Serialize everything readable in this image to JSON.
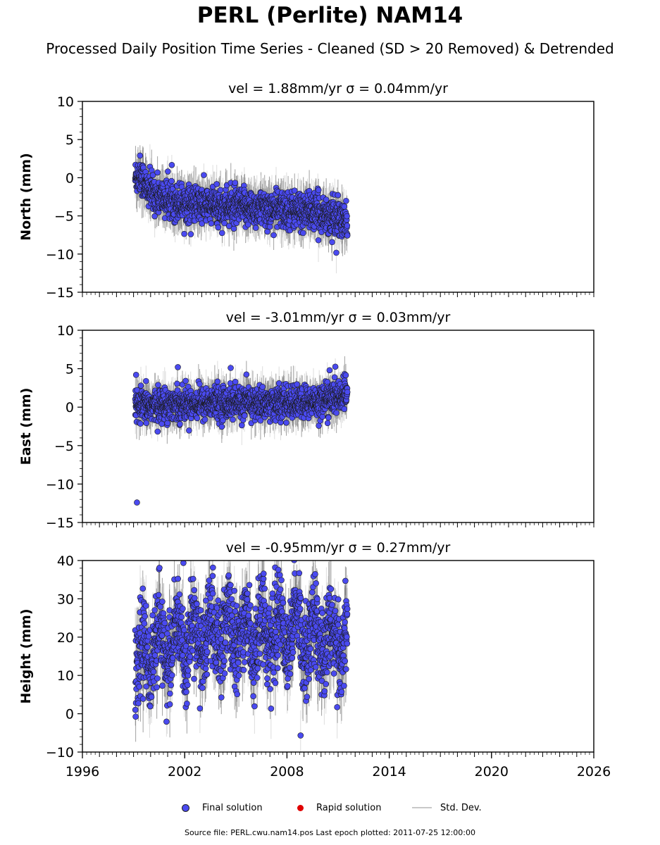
{
  "title": "PERL (Perlite) NAM14",
  "subtitle": "Processed Daily Position Time Series - Cleaned (SD > 20 Removed) & Detrended",
  "legend": {
    "final_label": "Final solution",
    "rapid_label": "Rapid solution",
    "std_label": "Std. Dev.",
    "final_color": "#4a4af0",
    "rapid_color": "#e00000",
    "std_color": "#c8c8c8"
  },
  "source_text": "Source file: PERL.cwu.nam14.pos  Last epoch plotted: 2011-07-25 12:00:00",
  "chart_data": [
    {
      "type": "scatter",
      "title": "vel = 1.88mm/yr   σ = 0.04mm/yr",
      "ylabel": "North (mm)",
      "xlim": [
        1996,
        2026
      ],
      "ylim": [
        -15,
        10
      ],
      "yticks": [
        10,
        5,
        0,
        -5,
        -10,
        -15
      ],
      "ytick_labels": [
        "10",
        "5",
        "0",
        "−5",
        "−10",
        "−15"
      ],
      "x_range": [
        1999.1,
        2011.55
      ],
      "series": [
        {
          "kind": "final",
          "trend": [
            [
              1999.1,
              0.0
            ],
            [
              1999.4,
              0.5
            ],
            [
              1999.8,
              -1.5
            ],
            [
              2000.5,
              -2.5
            ],
            [
              2002,
              -3.3
            ],
            [
              2004,
              -3.8
            ],
            [
              2006,
              -4.0
            ],
            [
              2008,
              -4.2
            ],
            [
              2009.5,
              -4.4
            ],
            [
              2010.6,
              -5.0
            ],
            [
              2011.55,
              -6.0
            ]
          ],
          "scatter_sd": 1.5
        },
        {
          "kind": "std_dev",
          "typical": 2.0
        }
      ]
    },
    {
      "type": "scatter",
      "title": "vel = -3.01mm/yr   σ = 0.03mm/yr",
      "ylabel": "East (mm)",
      "xlim": [
        1996,
        2026
      ],
      "ylim": [
        -15,
        10
      ],
      "yticks": [
        10,
        5,
        0,
        -5,
        -10,
        -15
      ],
      "ytick_labels": [
        "10",
        "5",
        "0",
        "−5",
        "−10",
        "−15"
      ],
      "x_range": [
        1999.1,
        2011.55
      ],
      "series": [
        {
          "kind": "final",
          "trend": [
            [
              1999.1,
              0.0
            ],
            [
              2001,
              0.4
            ],
            [
              2004,
              0.6
            ],
            [
              2007,
              0.5
            ],
            [
              2009.5,
              0.6
            ],
            [
              2010.6,
              1.2
            ],
            [
              2011.55,
              1.7
            ]
          ],
          "scatter_sd": 1.3
        },
        {
          "kind": "std_dev",
          "typical": 1.8
        }
      ],
      "outliers": [
        [
          1999.2,
          -12.4
        ],
        [
          1999.15,
          4.2
        ],
        [
          2001.6,
          5.2
        ],
        [
          2004.7,
          5.1
        ],
        [
          2010.5,
          4.8
        ]
      ]
    },
    {
      "type": "scatter",
      "title": "vel = -0.95mm/yr   σ = 0.27mm/yr",
      "ylabel": "Height (mm)",
      "xlim": [
        1996,
        2026
      ],
      "ylim": [
        -10,
        40
      ],
      "yticks": [
        40,
        30,
        20,
        10,
        0,
        -10
      ],
      "ytick_labels": [
        "40",
        "30",
        "20",
        "10",
        "0",
        "−10"
      ],
      "x_range": [
        1999.1,
        2011.55
      ],
      "series": [
        {
          "kind": "final",
          "trend": [
            [
              1999.1,
              12
            ],
            [
              2000,
              17
            ],
            [
              2002,
              19
            ],
            [
              2004,
              21
            ],
            [
              2006,
              21
            ],
            [
              2008,
              22
            ],
            [
              2010,
              20
            ],
            [
              2011.55,
              18
            ]
          ],
          "scatter_sd": 7.0,
          "seasonal_amp": 5.0
        },
        {
          "kind": "std_dev",
          "typical": 6.0
        }
      ]
    }
  ],
  "x_axis": {
    "ticks": [
      1996,
      2002,
      2008,
      2014,
      2020,
      2026
    ],
    "tick_labels": [
      "1996",
      "2002",
      "2008",
      "2014",
      "2020",
      "2026"
    ]
  }
}
